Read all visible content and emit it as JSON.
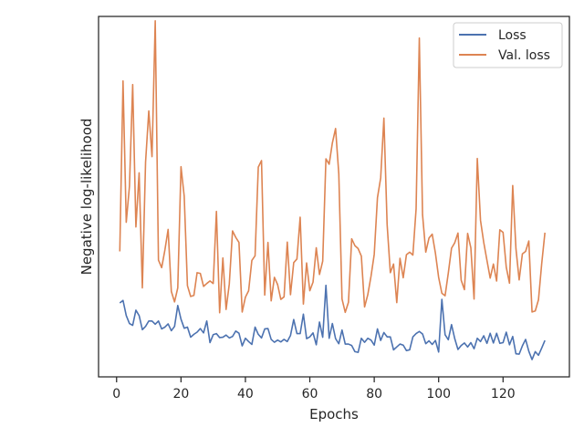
{
  "chart_data": {
    "type": "line",
    "title": "",
    "xlabel": "Epochs",
    "ylabel": "Negative log-likelihood",
    "xlim": [
      -5.6,
      140.6
    ],
    "ylim": [
      0,
      1
    ],
    "xticks": [
      0,
      20,
      40,
      60,
      80,
      100,
      120
    ],
    "grid": false,
    "legend_position": "top-right",
    "x": [
      1,
      2,
      3,
      4,
      5,
      6,
      7,
      8,
      9,
      10,
      11,
      12,
      13,
      14,
      15,
      16,
      17,
      18,
      19,
      20,
      21,
      22,
      23,
      24,
      25,
      26,
      27,
      28,
      29,
      30,
      31,
      32,
      33,
      34,
      35,
      36,
      37,
      38,
      39,
      40,
      41,
      42,
      43,
      44,
      45,
      46,
      47,
      48,
      49,
      50,
      51,
      52,
      53,
      54,
      55,
      56,
      57,
      58,
      59,
      60,
      61,
      62,
      63,
      64,
      65,
      66,
      67,
      68,
      69,
      70,
      71,
      72,
      73,
      74,
      75,
      76,
      77,
      78,
      79,
      80,
      81,
      82,
      83,
      84,
      85,
      86,
      87,
      88,
      89,
      90,
      91,
      92,
      93,
      94,
      95,
      96,
      97,
      98,
      99,
      100,
      101,
      102,
      103,
      104,
      105,
      106,
      107,
      108,
      109,
      110,
      111,
      112,
      113,
      114,
      115,
      116,
      117,
      118,
      119,
      120,
      121,
      122,
      123,
      124,
      125,
      126,
      127,
      128,
      129,
      130,
      131,
      132,
      133
    ],
    "series": [
      {
        "name": "Loss",
        "color": "#4c72b0",
        "values": [
          0.205,
          0.212,
          0.17,
          0.148,
          0.143,
          0.185,
          0.17,
          0.131,
          0.14,
          0.155,
          0.155,
          0.146,
          0.155,
          0.133,
          0.138,
          0.147,
          0.128,
          0.14,
          0.198,
          0.16,
          0.135,
          0.138,
          0.11,
          0.118,
          0.124,
          0.134,
          0.122,
          0.155,
          0.095,
          0.117,
          0.12,
          0.109,
          0.11,
          0.116,
          0.108,
          0.112,
          0.127,
          0.121,
          0.086,
          0.107,
          0.098,
          0.09,
          0.138,
          0.118,
          0.108,
          0.133,
          0.134,
          0.104,
          0.096,
          0.102,
          0.097,
          0.104,
          0.098,
          0.115,
          0.159,
          0.12,
          0.12,
          0.174,
          0.106,
          0.111,
          0.122,
          0.089,
          0.152,
          0.11,
          0.254,
          0.107,
          0.148,
          0.106,
          0.092,
          0.13,
          0.091,
          0.091,
          0.087,
          0.07,
          0.068,
          0.107,
          0.096,
          0.107,
          0.102,
          0.088,
          0.133,
          0.101,
          0.123,
          0.111,
          0.111,
          0.075,
          0.083,
          0.091,
          0.088,
          0.073,
          0.075,
          0.111,
          0.12,
          0.126,
          0.119,
          0.092,
          0.1,
          0.09,
          0.101,
          0.069,
          0.215,
          0.117,
          0.103,
          0.145,
          0.106,
          0.076,
          0.087,
          0.094,
          0.083,
          0.095,
          0.078,
          0.107,
          0.098,
          0.114,
          0.093,
          0.121,
          0.094,
          0.121,
          0.093,
          0.095,
          0.124,
          0.089,
          0.112,
          0.064,
          0.063,
          0.086,
          0.104,
          0.071,
          0.048,
          0.07,
          0.06,
          0.08,
          0.101
        ]
      },
      {
        "name": "Val. loss",
        "color": "#dd8452",
        "values": [
          0.348,
          0.821,
          0.429,
          0.529,
          0.811,
          0.416,
          0.566,
          0.247,
          0.596,
          0.738,
          0.611,
          0.988,
          0.324,
          0.303,
          0.352,
          0.409,
          0.237,
          0.208,
          0.247,
          0.583,
          0.501,
          0.253,
          0.223,
          0.226,
          0.289,
          0.287,
          0.251,
          0.259,
          0.266,
          0.259,
          0.459,
          0.178,
          0.33,
          0.187,
          0.258,
          0.405,
          0.387,
          0.373,
          0.18,
          0.221,
          0.239,
          0.323,
          0.336,
          0.582,
          0.6,
          0.227,
          0.373,
          0.211,
          0.276,
          0.256,
          0.215,
          0.222,
          0.374,
          0.228,
          0.317,
          0.327,
          0.443,
          0.202,
          0.316,
          0.239,
          0.263,
          0.358,
          0.284,
          0.321,
          0.605,
          0.59,
          0.649,
          0.689,
          0.563,
          0.216,
          0.179,
          0.207,
          0.383,
          0.364,
          0.356,
          0.335,
          0.194,
          0.228,
          0.279,
          0.34,
          0.497,
          0.552,
          0.718,
          0.423,
          0.289,
          0.313,
          0.206,
          0.329,
          0.275,
          0.339,
          0.346,
          0.338,
          0.466,
          0.94,
          0.45,
          0.346,
          0.385,
          0.396,
          0.343,
          0.276,
          0.232,
          0.225,
          0.288,
          0.357,
          0.372,
          0.399,
          0.268,
          0.242,
          0.398,
          0.358,
          0.216,
          0.606,
          0.434,
          0.373,
          0.323,
          0.274,
          0.313,
          0.266,
          0.408,
          0.401,
          0.304,
          0.26,
          0.531,
          0.356,
          0.269,
          0.341,
          0.348,
          0.377,
          0.18,
          0.183,
          0.214,
          0.314,
          0.4
        ]
      }
    ]
  }
}
